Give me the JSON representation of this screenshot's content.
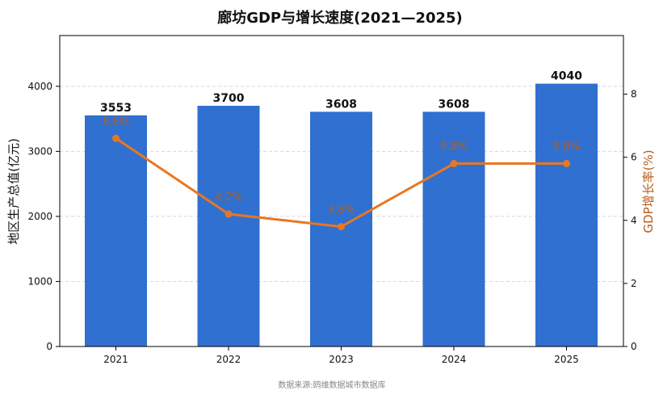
{
  "chart_data": {
    "type": "bar",
    "title": "廊坊GDP与增长速度(2021—2025)",
    "categories": [
      "2021",
      "2022",
      "2023",
      "2024",
      "2025"
    ],
    "series": [
      {
        "name": "地区生产总值(亿元)",
        "type": "bar",
        "axis": "left",
        "values": [
          3553,
          3700,
          3608,
          3608,
          4040
        ],
        "labels": [
          "3553",
          "3700",
          "3608",
          "3608",
          "4040"
        ],
        "color": "#3070d0"
      },
      {
        "name": "GDP增长率(%)",
        "type": "line",
        "axis": "right",
        "values": [
          6.6,
          4.2,
          3.8,
          5.8,
          5.8
        ],
        "labels": [
          "6.6%",
          "4.2%",
          "3.8%",
          "5.8%",
          "5.8%"
        ],
        "color": "#e87722",
        "label_color": "#b85c1a"
      }
    ],
    "ylabel": "地区生产总值(亿元)",
    "ylabel_right": "GDP增长率(%)",
    "ylim": [
      0,
      4780
    ],
    "ylim_right": [
      0,
      9.86
    ],
    "yticks": [
      0,
      1000,
      2000,
      3000,
      4000
    ],
    "yticks_right": [
      0,
      2,
      4,
      6,
      8
    ],
    "grid": "horizontal dashed",
    "source": "数据来源:鸥维数据城市数据库"
  }
}
